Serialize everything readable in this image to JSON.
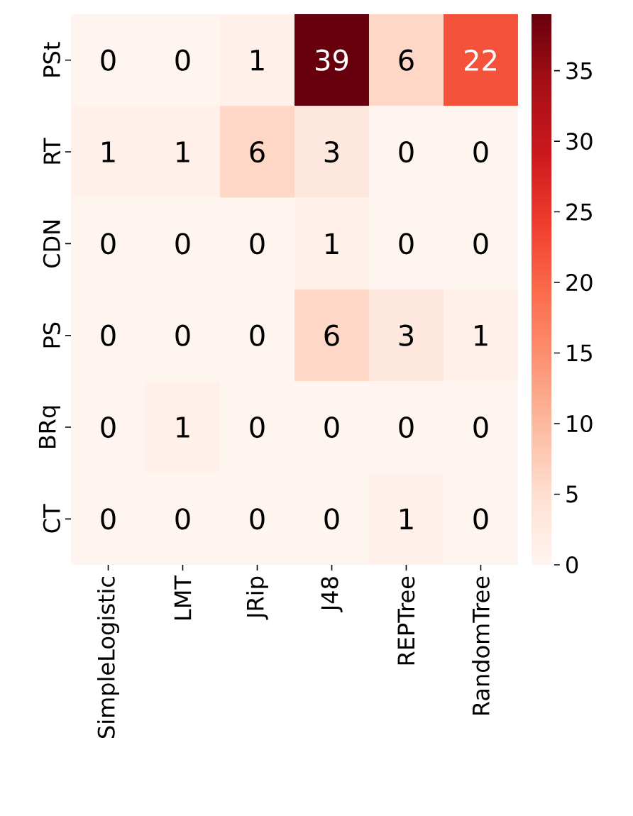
{
  "chart_data": {
    "type": "heatmap",
    "categories": [
      "SimpleLogistic",
      "LMT",
      "JRip",
      "J48",
      "REPTree",
      "RandomTree"
    ],
    "y_categories": [
      "PSt",
      "RT",
      "CDN",
      "PS",
      "BRq",
      "CT"
    ],
    "cells": [
      [
        0,
        0,
        1,
        39,
        6,
        22
      ],
      [
        1,
        1,
        6,
        3,
        0,
        0
      ],
      [
        0,
        0,
        0,
        1,
        0,
        0
      ],
      [
        0,
        0,
        0,
        6,
        3,
        1
      ],
      [
        0,
        1,
        0,
        0,
        0,
        0
      ],
      [
        0,
        0,
        0,
        0,
        1,
        0
      ]
    ],
    "clim": [
      0,
      39
    ],
    "cticks": [
      0,
      5,
      10,
      15,
      20,
      25,
      30,
      35
    ],
    "data_labels": true
  }
}
